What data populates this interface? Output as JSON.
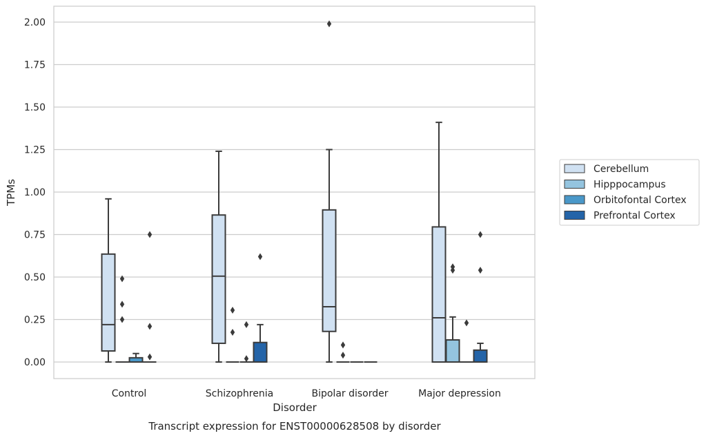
{
  "chart_data": {
    "type": "box",
    "title": "",
    "caption": "Transcript expression for ENST00000628508 by disorder",
    "xlabel": "Disorder",
    "ylabel": "TPMs",
    "ylim": [
      -0.1,
      2.1
    ],
    "yticks": [
      "0.00",
      "0.25",
      "0.50",
      "0.75",
      "1.00",
      "1.25",
      "1.50",
      "1.75",
      "2.00"
    ],
    "categories": [
      "Control",
      "Schizophrenia",
      "Bipolar disorder",
      "Major depression"
    ],
    "grid": true,
    "legend_position": "right",
    "colors": {
      "Cerebellum": "#d0e1f2",
      "Hipppocampus": "#94c4df",
      "Orbitofontal Cortex": "#4a98c9",
      "Prefrontal Cortex": "#2464a8",
      "grid": "#cccccc",
      "box_edge": "#3b3b3b"
    },
    "series": [
      {
        "name": "Cerebellum",
        "boxes": [
          {
            "min": 0.0,
            "q1": 0.065,
            "median": 0.22,
            "q3": 0.635,
            "max": 0.96,
            "outliers": []
          },
          {
            "min": 0.0,
            "q1": 0.11,
            "median": 0.505,
            "q3": 0.865,
            "max": 1.24,
            "outliers": []
          },
          {
            "min": 0.0,
            "q1": 0.18,
            "median": 0.325,
            "q3": 0.895,
            "max": 1.25,
            "outliers": [
              1.99
            ]
          },
          {
            "min": 0.0,
            "q1": 0.0,
            "median": 0.26,
            "q3": 0.795,
            "max": 1.41,
            "outliers": []
          }
        ]
      },
      {
        "name": "Hipppocampus",
        "boxes": [
          {
            "min": 0.0,
            "q1": 0.0,
            "median": 0.0,
            "q3": 0.0,
            "max": 0.0,
            "outliers": [
              0.49,
              0.34,
              0.25
            ]
          },
          {
            "min": 0.0,
            "q1": 0.0,
            "median": 0.0,
            "q3": 0.0,
            "max": 0.0,
            "outliers": [
              0.305,
              0.175
            ]
          },
          {
            "min": 0.0,
            "q1": 0.0,
            "median": 0.0,
            "q3": 0.0,
            "max": 0.0,
            "outliers": [
              0.1,
              0.04
            ]
          },
          {
            "min": 0.0,
            "q1": 0.0,
            "median": 0.0,
            "q3": 0.13,
            "max": 0.265,
            "outliers": [
              0.56,
              0.54
            ]
          }
        ]
      },
      {
        "name": "Orbitofontal Cortex",
        "boxes": [
          {
            "min": 0.0,
            "q1": 0.0,
            "median": 0.0,
            "q3": 0.025,
            "max": 0.05,
            "outliers": []
          },
          {
            "min": 0.0,
            "q1": 0.0,
            "median": 0.0,
            "q3": 0.0,
            "max": 0.0,
            "outliers": [
              0.22,
              0.02
            ]
          },
          {
            "min": 0.0,
            "q1": 0.0,
            "median": 0.0,
            "q3": 0.0,
            "max": 0.0,
            "outliers": []
          },
          {
            "min": 0.0,
            "q1": 0.0,
            "median": 0.0,
            "q3": 0.0,
            "max": 0.0,
            "outliers": [
              0.23
            ]
          }
        ]
      },
      {
        "name": "Prefrontal Cortex",
        "boxes": [
          {
            "min": 0.0,
            "q1": 0.0,
            "median": 0.0,
            "q3": 0.0,
            "max": 0.0,
            "outliers": [
              0.75,
              0.21,
              0.03
            ]
          },
          {
            "min": 0.0,
            "q1": 0.0,
            "median": 0.0,
            "q3": 0.115,
            "max": 0.22,
            "outliers": [
              0.62
            ]
          },
          {
            "min": 0.0,
            "q1": 0.0,
            "median": 0.0,
            "q3": 0.0,
            "max": 0.0,
            "outliers": []
          },
          {
            "min": 0.0,
            "q1": 0.0,
            "median": 0.0,
            "q3": 0.07,
            "max": 0.11,
            "outliers": [
              0.75,
              0.54
            ]
          }
        ]
      }
    ]
  }
}
